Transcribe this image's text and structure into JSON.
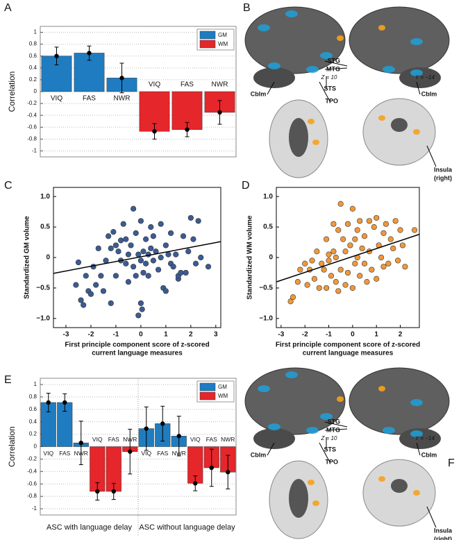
{
  "chart_data": [
    {
      "type": "bar",
      "panel_label": "A",
      "ylabel": "Correlation",
      "categories": [
        "VIQ",
        "FAS",
        "NWR",
        "VIQ",
        "FAS",
        "NWR"
      ],
      "series": [
        {
          "name": "GM",
          "color": "#1f7cc1",
          "values": [
            0.6,
            0.65,
            0.23,
            null,
            null,
            null
          ],
          "errors": [
            0.15,
            0.12,
            0.25,
            null,
            null,
            null
          ]
        },
        {
          "name": "WM",
          "color": "#e5262b",
          "values": [
            null,
            null,
            null,
            -0.67,
            -0.64,
            -0.35
          ],
          "errors": [
            null,
            null,
            null,
            0.13,
            0.12,
            0.2
          ]
        }
      ],
      "ylim": [
        -1.1,
        1.1
      ],
      "yticks": [
        -1,
        -0.8,
        -0.6,
        -0.4,
        -0.2,
        0,
        0.2,
        0.4,
        0.6,
        0.8,
        1
      ],
      "grid": true,
      "legend": "top-right"
    },
    {
      "type": "scatter",
      "panel_label": "C",
      "ylabel": "Standardized GM volume",
      "xlabel": [
        "First principle component score of z-scored",
        "current language measures"
      ],
      "series": [
        {
          "color": "#3b5b93",
          "x": [
            -2.6,
            -2.5,
            -2.4,
            -2.3,
            -2.2,
            -2.1,
            -2.0,
            -1.9,
            -1.8,
            -1.7,
            -1.6,
            -1.5,
            -1.4,
            -1.3,
            -1.2,
            -1.2,
            -1.1,
            -1.0,
            -1.0,
            -0.9,
            -0.8,
            -0.8,
            -0.7,
            -0.6,
            -0.6,
            -0.5,
            -0.5,
            -0.4,
            -0.3,
            -0.3,
            -0.2,
            -0.2,
            -0.1,
            0,
            0,
            0.05,
            0.1,
            0.1,
            0.2,
            0.2,
            0.3,
            0.3,
            0.4,
            0.4,
            0.5,
            0.5,
            0.6,
            0.7,
            0.8,
            0.8,
            0.9,
            1.0,
            1.0,
            1.1,
            1.2,
            1.2,
            1.3,
            1.4,
            1.5,
            1.5,
            1.6,
            1.7,
            1.8,
            1.9,
            2.0,
            2.1,
            2.2,
            2.3,
            2.4,
            2.7,
            -0.1,
            0.0
          ],
          "values": [
            -0.45,
            -0.08,
            -0.7,
            -0.78,
            -0.3,
            -0.55,
            -0.6,
            -0.15,
            -0.45,
            0.15,
            -0.3,
            -0.55,
            -0.05,
            0.35,
            0.15,
            -0.75,
            0.42,
            0.2,
            -0.3,
            0.1,
            0.28,
            -0.05,
            0.55,
            0.3,
            -0.1,
            0.05,
            -0.4,
            0.2,
            0.8,
            -0.15,
            0.4,
            -0.3,
            0.05,
            0.6,
            -0.05,
            -0.85,
            0.1,
            -0.25,
            0.3,
            -0.1,
            0.05,
            -0.3,
            0.5,
            0.15,
            -0.05,
            0.35,
            0.1,
            -0.2,
            0.55,
            0.0,
            -0.5,
            -0.55,
            0.2,
            0.05,
            0.4,
            -0.1,
            -0.15,
            0.05,
            -0.35,
            -0.3,
            -0.25,
            0.35,
            -0.25,
            0.1,
            0.65,
            0.3,
            -0.1,
            0.6,
            0.0,
            -0.15,
            -0.95,
            -0.75
          ]
        }
      ],
      "fit_line": {
        "x": [
          -3.5,
          3.2
        ],
        "values": [
          -0.26,
          0.26
        ]
      },
      "xlim": [
        -3.5,
        3.2
      ],
      "xticks": [
        -3,
        -2,
        -1,
        0,
        1,
        2,
        3
      ],
      "ylim": [
        -1.15,
        1.15
      ],
      "yticks": [
        {
          "value": -1,
          "label": "−1.0"
        },
        {
          "value": -0.5,
          "label": "−0.5"
        },
        0,
        0.5,
        {
          "value": 1,
          "label": "1.0"
        }
      ]
    },
    {
      "type": "scatter",
      "panel_label": "D",
      "ylabel": "Standardized WM volume",
      "xlabel": [
        "First principle component score of z-scored",
        "current language measures"
      ],
      "series": [
        {
          "color": "#f0983a",
          "x": [
            -2.6,
            -2.5,
            -2.3,
            -2.2,
            -2.0,
            -1.9,
            -1.8,
            -1.7,
            -1.6,
            -1.5,
            -1.4,
            -1.3,
            -1.2,
            -1.1,
            -1.0,
            -1.0,
            -0.9,
            -0.8,
            -0.7,
            -0.7,
            -0.6,
            -0.6,
            -0.5,
            -0.5,
            -0.4,
            -0.3,
            -0.3,
            -0.2,
            -0.2,
            -0.1,
            0,
            0,
            0.1,
            0.1,
            0.2,
            0.2,
            0.3,
            0.3,
            0.4,
            0.5,
            0.5,
            0.6,
            0.7,
            0.7,
            0.8,
            0.9,
            1.0,
            1.0,
            1.1,
            1.2,
            1.3,
            1.3,
            1.4,
            1.5,
            1.6,
            1.7,
            1.8,
            1.9,
            2.0,
            2.1,
            2.2,
            2.6,
            -0.8,
            -1.1
          ],
          "values": [
            -0.72,
            -0.65,
            -0.4,
            -0.2,
            -0.1,
            -0.45,
            -0.2,
            -0.05,
            -0.35,
            0.1,
            -0.5,
            -0.1,
            -0.2,
            -0.5,
            -0.05,
            0.05,
            -0.3,
            0.1,
            -0.4,
            0.0,
            0.45,
            -0.55,
            0.88,
            -0.2,
            0.3,
            -0.45,
            0.1,
            0.55,
            -0.25,
            0.2,
            0.8,
            -0.5,
            0.3,
            -0.1,
            0.45,
            0.0,
            0.6,
            -0.3,
            0.15,
            -0.1,
            0.35,
            -0.4,
            0.6,
            0.1,
            -0.2,
            0.5,
            0.65,
            -0.35,
            0.2,
            0.0,
            0.4,
            -0.15,
            0.55,
            -0.1,
            0.3,
            0.15,
            0.6,
            -0.05,
            0.45,
            0.2,
            -0.15,
            0.45,
            0.55,
            0.3
          ]
        }
      ],
      "fit_line": {
        "x": [
          -3.2,
          2.8
        ],
        "values": [
          -0.4,
          0.38
        ]
      },
      "xlim": [
        -3.2,
        2.8
      ],
      "xticks": [
        -3,
        -2,
        -1,
        0,
        1,
        2
      ],
      "ylim": [
        -1.15,
        1.15
      ],
      "yticks": [
        {
          "value": -1,
          "label": "−1.0"
        },
        {
          "value": -0.5,
          "label": "−0.5"
        },
        0,
        0.5,
        {
          "value": 1,
          "label": "1.0"
        }
      ]
    },
    {
      "type": "bar",
      "panel_label": "E",
      "ylabel": "Correlation",
      "categories": [
        "VIQ",
        "FAS",
        "NWR",
        "VIQ",
        "FAS",
        "NWR",
        "VIQ",
        "FAS",
        "NWR",
        "VIQ",
        "FAS",
        "NWR"
      ],
      "group_labels": [
        "ASC with language delay",
        "ASC without language delay"
      ],
      "series": [
        {
          "name": "GM",
          "color": "#1f7cc1",
          "values": [
            0.71,
            0.71,
            0.06,
            null,
            null,
            null,
            0.29,
            0.37,
            0.17,
            null,
            null,
            null
          ],
          "errors": [
            0.15,
            0.14,
            0.35,
            null,
            null,
            null,
            0.35,
            0.28,
            0.32,
            null,
            null,
            null
          ]
        },
        {
          "name": "WM",
          "color": "#e5262b",
          "values": [
            null,
            null,
            null,
            -0.72,
            -0.72,
            -0.08,
            null,
            null,
            null,
            -0.59,
            -0.34,
            -0.41
          ],
          "errors": [
            null,
            null,
            null,
            0.14,
            0.13,
            0.36,
            null,
            null,
            null,
            0.12,
            0.3,
            0.27
          ]
        }
      ],
      "ylim": [
        -1.1,
        1.1
      ],
      "yticks": [
        -1,
        -0.8,
        -0.6,
        -0.4,
        -0.2,
        0,
        0.2,
        0.4,
        0.6,
        0.8,
        1
      ],
      "grid": true,
      "legend": "top-right"
    }
  ],
  "brain_panels": [
    {
      "panel_label": "B",
      "labels": [
        "STG",
        "MTG",
        "STS",
        "TPO",
        "Cblm",
        "Cblm",
        "Z = 10",
        "Y = −14",
        "Insula",
        "(right)"
      ]
    },
    {
      "panel_label": "F",
      "labels": [
        "STG",
        "MTG",
        "STS",
        "TPO",
        "Cblm",
        "Cblm",
        "Z = 10",
        "Y = −14",
        "Insula",
        "(right)"
      ]
    }
  ]
}
